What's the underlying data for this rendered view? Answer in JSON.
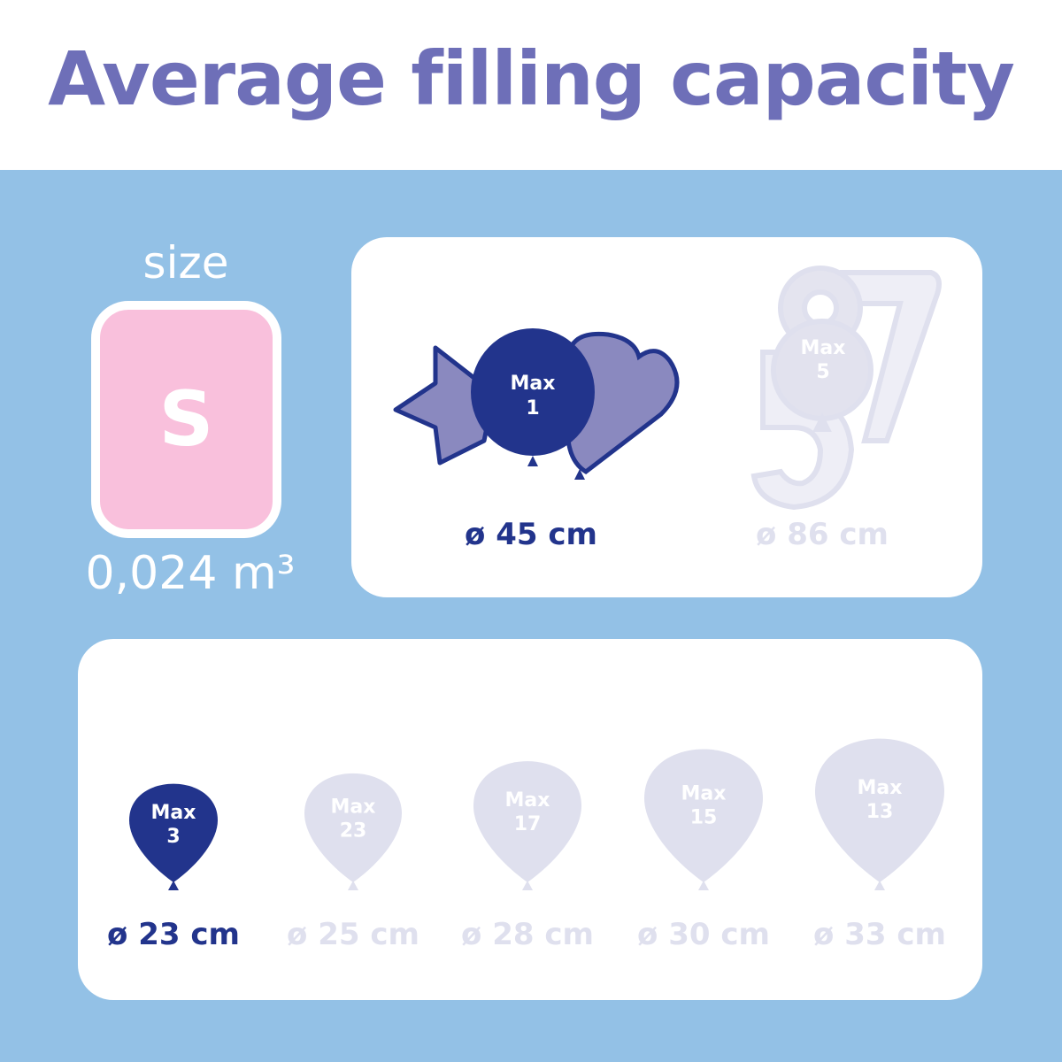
{
  "title": "Average filling capacity",
  "size": {
    "label": "size",
    "value": "S",
    "volume": "0,024 m³"
  },
  "colors": {
    "title": "#6e6fb8",
    "background": "#93c1e6",
    "size_box": "#f9c0dc",
    "active": "#22348c",
    "active_light": "#8a89bf",
    "inactive": "#dfe0ee"
  },
  "foil_balloons": [
    {
      "max_label": "Max",
      "max": "1",
      "diameter": "ø 45 cm",
      "active": true,
      "shapes": [
        "star",
        "round",
        "heart"
      ]
    },
    {
      "max_label": "Max",
      "max": "5",
      "diameter": "ø 86 cm",
      "active": false,
      "shapes": [
        "number-8",
        "number-7",
        "number-5",
        "round"
      ]
    }
  ],
  "latex_balloons": [
    {
      "max_label": "Max",
      "max": "3",
      "diameter": "ø 23 cm",
      "active": true
    },
    {
      "max_label": "Max",
      "max": "23",
      "diameter": "ø 25 cm",
      "active": false
    },
    {
      "max_label": "Max",
      "max": "17",
      "diameter": "ø 28 cm",
      "active": false
    },
    {
      "max_label": "Max",
      "max": "15",
      "diameter": "ø 30 cm",
      "active": false
    },
    {
      "max_label": "Max",
      "max": "13",
      "diameter": "ø 33 cm",
      "active": false
    }
  ]
}
